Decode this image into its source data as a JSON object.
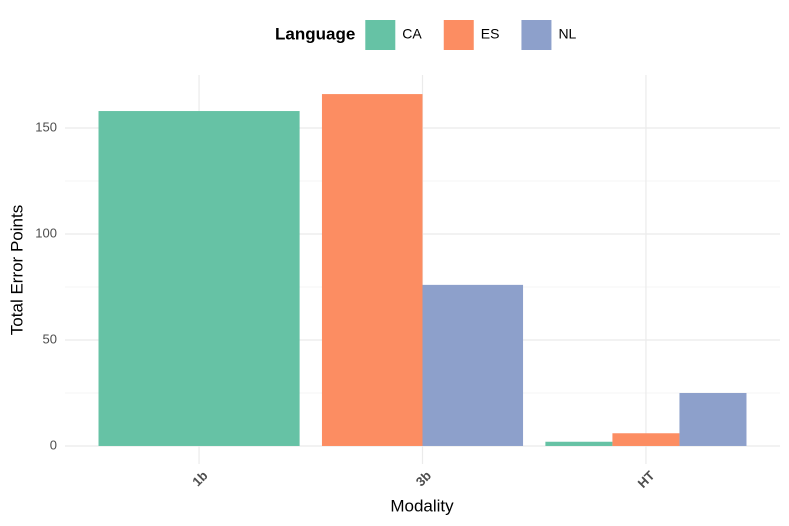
{
  "chart_data": {
    "type": "bar",
    "x_label": "Modality",
    "y_label": "Total Error Points",
    "legend_title": "Language",
    "legend_position": "top",
    "categories": [
      "1b",
      "3b",
      "HT"
    ],
    "series": [
      {
        "name": "CA",
        "color": "#66c2a5",
        "values": [
          158,
          null,
          2
        ]
      },
      {
        "name": "ES",
        "color": "#fc8d62",
        "values": [
          null,
          166,
          6
        ]
      },
      {
        "name": "NL",
        "color": "#8da0cb",
        "values": [
          null,
          76,
          25
        ]
      }
    ],
    "ylim": [
      -8.5,
      175
    ],
    "yticks": [
      0,
      50,
      100,
      150
    ],
    "minor_yticks": [
      25,
      75,
      125
    ],
    "grid": true
  }
}
